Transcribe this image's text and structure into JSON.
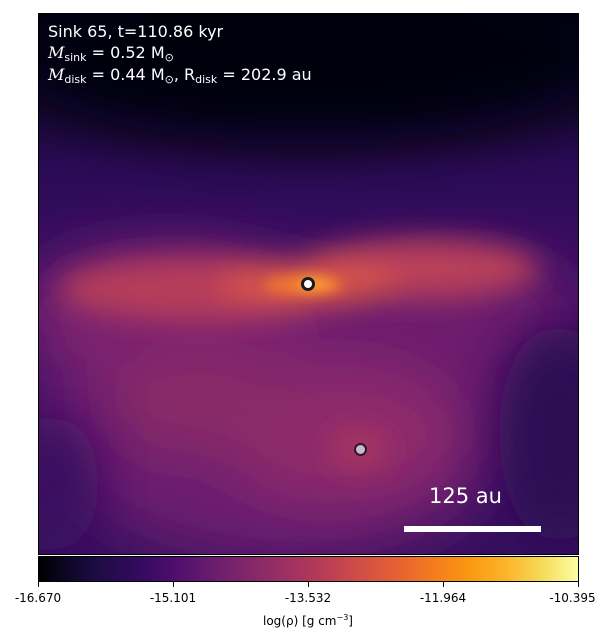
{
  "annotation": {
    "line1": "Sink 65, t=110.86 kyr",
    "mass_sink_label": "M",
    "mass_sink_sub": "sink",
    "mass_sink_value": " = 0.52 M",
    "mass_sink_unit_sub": "⊙",
    "mass_disk_label": "M",
    "mass_disk_sub": "disk",
    "mass_disk_value": " = 0.44 M",
    "mass_disk_unit_sub": "⊙",
    "radius_label": ", R",
    "radius_sub": "disk",
    "radius_value": " = 202.9 au"
  },
  "scalebar": {
    "label": "125 au"
  },
  "colorbar": {
    "ticks": [
      "-16.670",
      "-15.101",
      "-13.532",
      "-11.964",
      "-10.395"
    ],
    "label_main": "log(ρ) [g cm",
    "label_sup": "−3",
    "label_end": "]",
    "colormap": "inferno"
  }
}
